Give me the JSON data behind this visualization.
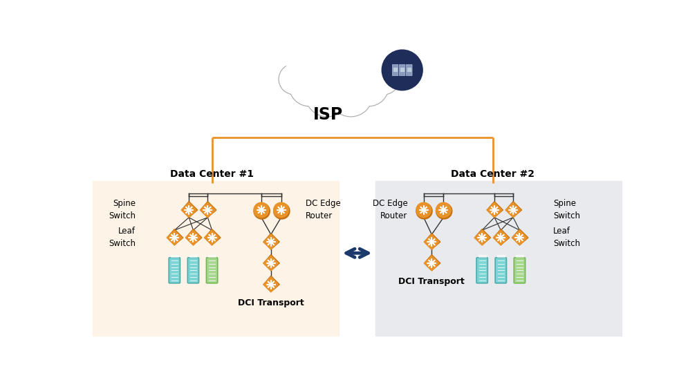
{
  "background": "#ffffff",
  "dc1_bg": "#fdf3e7",
  "dc2_bg": "#e8eaed",
  "dc1_label": "Data Center #1",
  "dc2_label": "Data Center #2",
  "isp_label": "ISP",
  "dci_transport": "DCI Transport",
  "dc_edge_router": "DC Edge\nRouter",
  "spine_switch": "Spine\nSwitch",
  "leaf_switch": "Leaf\nSwitch",
  "orange": "#e8922a",
  "orange_dark": "#c47010",
  "dark_navy": "#1e2d5a",
  "isp_line_color": "#e8922a",
  "line_color": "#333333",
  "arrow_color": "#1b3a6b",
  "cloud_fill": "#ffffff",
  "cloud_stroke": "#aaaaaa",
  "server_cyan": "#7dd4d4",
  "server_cyan_edge": "#4aabab",
  "server_green": "#a8d890",
  "server_green_edge": "#70b850"
}
